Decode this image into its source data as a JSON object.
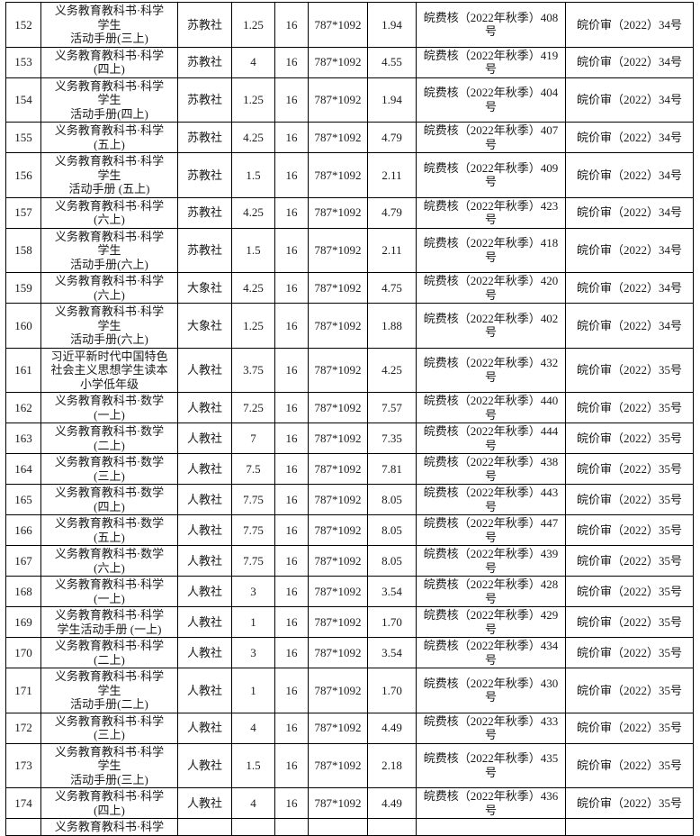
{
  "page": {
    "background_color": "#ffffff",
    "text_color": "#1a1a1a",
    "border_color": "#000000"
  },
  "table": {
    "rows": [
      {
        "no": "152",
        "title": "义务教育教科书·科学\n学生\n活动手册(三上)",
        "publisher": "苏教社",
        "price": "1.25",
        "format": "16",
        "size": "787*1092",
        "total": "1.94",
        "approval": "皖费核（2022年秋季）408\n号",
        "doc": "皖价审（2022）34号"
      },
      {
        "no": "153",
        "title": "义务教育教科书·科学\n(四上)",
        "publisher": "苏教社",
        "price": "4",
        "format": "16",
        "size": "787*1092",
        "total": "4.55",
        "approval": "皖费核（2022年秋季）419\n号",
        "doc": "皖价审（2022）34号"
      },
      {
        "no": "154",
        "title": "义务教育教科书·科学\n学生\n活动手册(四上)",
        "publisher": "苏教社",
        "price": "1.25",
        "format": "16",
        "size": "787*1092",
        "total": "1.94",
        "approval": "皖费核（2022年秋季）404\n号",
        "doc": "皖价审（2022）34号"
      },
      {
        "no": "155",
        "title": "义务教育教科书·科学\n(五上)",
        "publisher": "苏教社",
        "price": "4.25",
        "format": "16",
        "size": "787*1092",
        "total": "4.79",
        "approval": "皖费核（2022年秋季）407\n号",
        "doc": "皖价审（2022）34号"
      },
      {
        "no": "156",
        "title": "义务教育教科书·科学\n学生\n活动手册 (五上)",
        "publisher": "苏教社",
        "price": "1.5",
        "format": "16",
        "size": "787*1092",
        "total": "2.11",
        "approval": "皖费核（2022年秋季）409\n号",
        "doc": "皖价审（2022）34号"
      },
      {
        "no": "157",
        "title": "义务教育教科书·科学\n(六上)",
        "publisher": "苏教社",
        "price": "4.25",
        "format": "16",
        "size": "787*1092",
        "total": "4.79",
        "approval": "皖费核（2022年秋季）423\n号",
        "doc": "皖价审（2022）34号"
      },
      {
        "no": "158",
        "title": "义务教育教科书·科学\n学生\n活动手册(六上)",
        "publisher": "苏教社",
        "price": "1.5",
        "format": "16",
        "size": "787*1092",
        "total": "2.11",
        "approval": "皖费核（2022年秋季）418\n号",
        "doc": "皖价审（2022）34号"
      },
      {
        "no": "159",
        "title": "义务教育教科书·科学\n(六上)",
        "publisher": "大象社",
        "price": "4.25",
        "format": "16",
        "size": "787*1092",
        "total": "4.75",
        "approval": "皖费核（2022年秋季）420\n号",
        "doc": "皖价审（2022）34号"
      },
      {
        "no": "160",
        "title": "义务教育教科书·科学\n学生\n活动手册(六上)",
        "publisher": "大象社",
        "price": "1.25",
        "format": "16",
        "size": "787*1092",
        "total": "1.88",
        "approval": "皖费核（2022年秋季）402\n号",
        "doc": "皖价审（2022）34号"
      },
      {
        "no": "161",
        "title": "习近平新时代中国特色\n社会主义思想学生读本\n小学低年级",
        "publisher": "人教社",
        "price": "3.75",
        "format": "16",
        "size": "787*1092",
        "total": "4.25",
        "approval": "皖费核（2022年秋季）432\n号",
        "doc": "皖价审（2022）35号"
      },
      {
        "no": "162",
        "title": "义务教育教科书·数学\n(一上)",
        "publisher": "人教社",
        "price": "7.25",
        "format": "16",
        "size": "787*1092",
        "total": "7.57",
        "approval": "皖费核（2022年秋季）440\n号",
        "doc": "皖价审（2022）35号"
      },
      {
        "no": "163",
        "title": "义务教育教科书·数学\n(二上)",
        "publisher": "人教社",
        "price": "7",
        "format": "16",
        "size": "787*1092",
        "total": "7.35",
        "approval": "皖费核（2022年秋季）444\n号",
        "doc": "皖价审（2022）35号"
      },
      {
        "no": "164",
        "title": "义务教育教科书·数学\n(三上)",
        "publisher": "人教社",
        "price": "7.5",
        "format": "16",
        "size": "787*1092",
        "total": "7.81",
        "approval": "皖费核（2022年秋季）438\n号",
        "doc": "皖价审（2022）35号"
      },
      {
        "no": "165",
        "title": "义务教育教科书·数学\n(四上)",
        "publisher": "人教社",
        "price": "7.75",
        "format": "16",
        "size": "787*1092",
        "total": "8.05",
        "approval": "皖费核（2022年秋季）443\n号",
        "doc": "皖价审（2022）35号"
      },
      {
        "no": "166",
        "title": "义务教育教科书·数学\n(五上)",
        "publisher": "人教社",
        "price": "7.75",
        "format": "16",
        "size": "787*1092",
        "total": "8.05",
        "approval": "皖费核（2022年秋季）447\n号",
        "doc": "皖价审（2022）35号"
      },
      {
        "no": "167",
        "title": "义务教育教科书·数学\n(六上)",
        "publisher": "人教社",
        "price": "7.75",
        "format": "16",
        "size": "787*1092",
        "total": "8.05",
        "approval": "皖费核（2022年秋季）439\n号",
        "doc": "皖价审（2022）35号"
      },
      {
        "no": "168",
        "title": "义务教育教科书·科学\n(一上)",
        "publisher": "人教社",
        "price": "3",
        "format": "16",
        "size": "787*1092",
        "total": "3.54",
        "approval": "皖费核（2022年秋季）428\n号",
        "doc": "皖价审（2022）35号"
      },
      {
        "no": "169",
        "title": "义务教育教科书·科学\n学生活动手册 (一上)",
        "publisher": "人教社",
        "price": "1",
        "format": "16",
        "size": "787*1092",
        "total": "1.70",
        "approval": "皖费核（2022年秋季）429\n号",
        "doc": "皖价审（2022）35号"
      },
      {
        "no": "170",
        "title": "义务教育教科书·科学\n(二上)",
        "publisher": "人教社",
        "price": "3",
        "format": "16",
        "size": "787*1092",
        "total": "3.54",
        "approval": "皖费核（2022年秋季）434\n号",
        "doc": "皖价审（2022）35号"
      },
      {
        "no": "171",
        "title": "义务教育教科书·科学\n学生\n活动手册(二上)",
        "publisher": "人教社",
        "price": "1",
        "format": "16",
        "size": "787*1092",
        "total": "1.70",
        "approval": "皖费核（2022年秋季）430\n号",
        "doc": "皖价审（2022）35号"
      },
      {
        "no": "172",
        "title": "义务教育教科书·科学\n(三上)",
        "publisher": "人教社",
        "price": "4",
        "format": "16",
        "size": "787*1092",
        "total": "4.49",
        "approval": "皖费核（2022年秋季）433\n号",
        "doc": "皖价审（2022）35号"
      },
      {
        "no": "173",
        "title": "义务教育教科书·科学\n学生\n活动手册(三上)",
        "publisher": "人教社",
        "price": "1.5",
        "format": "16",
        "size": "787*1092",
        "total": "2.18",
        "approval": "皖费核（2022年秋季）435\n号",
        "doc": "皖价审（2022）35号"
      },
      {
        "no": "174",
        "title": "义务教育教科书·科学\n(四上)",
        "publisher": "人教社",
        "price": "4",
        "format": "16",
        "size": "787*1092",
        "total": "4.49",
        "approval": "皖费核（2022年秋季）436\n号",
        "doc": "皖价审（2022）35号"
      }
    ],
    "partial_row": {
      "no": "",
      "title": "义务教育教科书·科学",
      "publisher": "",
      "price": "",
      "format": "",
      "size": "",
      "total": "",
      "approval": "",
      "doc": ""
    }
  }
}
